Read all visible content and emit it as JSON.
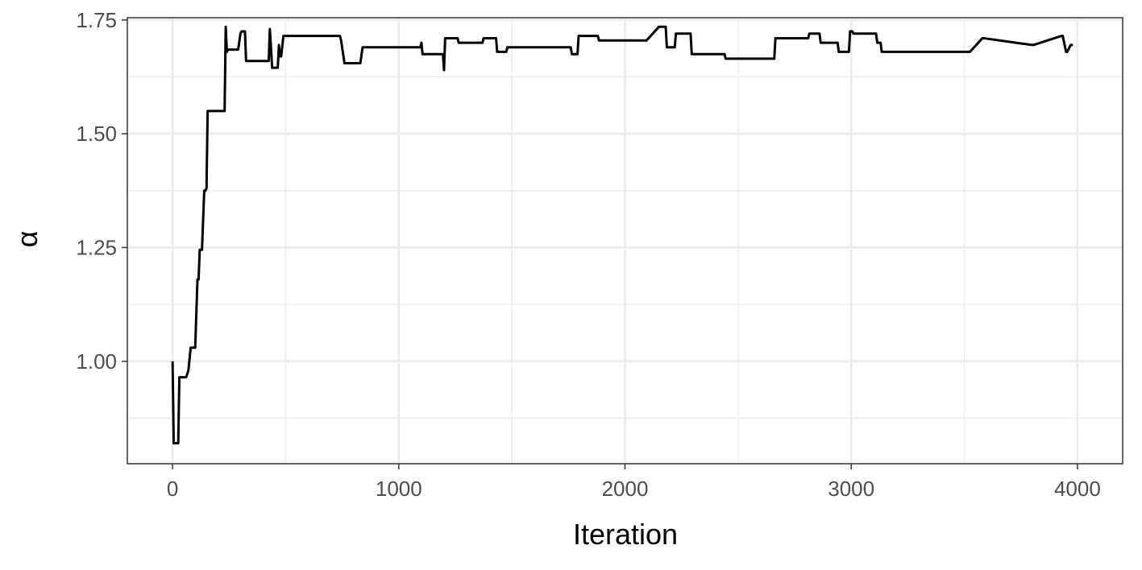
{
  "chart_data": {
    "type": "line",
    "xlabel": "Iteration",
    "ylabel": "α",
    "xlim": [
      -200,
      4200
    ],
    "ylim": [
      0.775,
      1.755
    ],
    "x_ticks": [
      0,
      1000,
      2000,
      3000,
      4000
    ],
    "x_tick_labels": [
      "0",
      "1000",
      "2000",
      "3000",
      "4000"
    ],
    "y_ticks": [
      1.0,
      1.25,
      1.5,
      1.75
    ],
    "y_tick_labels": [
      "1.00",
      "1.25",
      "1.50",
      "1.75"
    ],
    "grid": true,
    "colors": {
      "line": "#000000",
      "grid": "#ebebeb",
      "panel_border": "#333333",
      "background": "#ffffff"
    },
    "series": [
      {
        "x": [
          0,
          5,
          10,
          15,
          20,
          25,
          30,
          60,
          70,
          80,
          100,
          110,
          115,
          120,
          125,
          130,
          140,
          145,
          150,
          155,
          160,
          165,
          170,
          175,
          200,
          230,
          235,
          240,
          245,
          255,
          290,
          300,
          305,
          320,
          325,
          360,
          410,
          420,
          425,
          430,
          435,
          440,
          460,
          465,
          470,
          475,
          480,
          490,
          495,
          500,
          740,
          745,
          760,
          765,
          820,
          830,
          840,
          860,
          1090,
          1095,
          1100,
          1105,
          1190,
          1195,
          1200,
          1205,
          1260,
          1265,
          1370,
          1375,
          1430,
          1435,
          1475,
          1480,
          1760,
          1765,
          1790,
          1795,
          1830,
          1835,
          1880,
          1885,
          2090,
          2095,
          2150,
          2155,
          2180,
          2185,
          2220,
          2225,
          2290,
          2295,
          2420,
          2425,
          2440,
          2445,
          2660,
          2665,
          2810,
          2815,
          2860,
          2865,
          2940,
          2945,
          2990,
          2995,
          3005,
          3010,
          3110,
          3115,
          3130,
          3135,
          3520,
          3525,
          3580,
          3585,
          3800,
          3805,
          3930,
          3935,
          3950,
          3955,
          3970,
          3980
        ],
        "y": [
          1.0,
          0.82,
          0.82,
          0.82,
          0.82,
          0.82,
          0.965,
          0.965,
          0.98,
          1.03,
          1.03,
          1.18,
          1.18,
          1.245,
          1.245,
          1.245,
          1.375,
          1.375,
          1.38,
          1.55,
          1.55,
          1.55,
          1.55,
          1.55,
          1.55,
          1.55,
          1.735,
          1.68,
          1.685,
          1.685,
          1.685,
          1.72,
          1.725,
          1.725,
          1.66,
          1.66,
          1.66,
          1.66,
          1.66,
          1.73,
          1.69,
          1.645,
          1.645,
          1.645,
          1.695,
          1.67,
          1.67,
          1.715,
          1.715,
          1.715,
          1.715,
          1.705,
          1.655,
          1.655,
          1.655,
          1.655,
          1.69,
          1.69,
          1.69,
          1.69,
          1.7,
          1.675,
          1.675,
          1.675,
          1.64,
          1.71,
          1.71,
          1.7,
          1.7,
          1.71,
          1.71,
          1.68,
          1.68,
          1.69,
          1.69,
          1.675,
          1.675,
          1.715,
          1.715,
          1.715,
          1.715,
          1.705,
          1.705,
          1.705,
          1.735,
          1.735,
          1.735,
          1.69,
          1.69,
          1.72,
          1.72,
          1.675,
          1.675,
          1.675,
          1.675,
          1.665,
          1.665,
          1.71,
          1.71,
          1.72,
          1.72,
          1.7,
          1.7,
          1.68,
          1.68,
          1.725,
          1.725,
          1.72,
          1.72,
          1.7,
          1.7,
          1.68,
          1.68,
          1.68,
          1.71,
          1.71,
          1.695,
          1.695,
          1.715,
          1.715,
          1.68,
          1.68,
          1.695,
          1.695
        ]
      }
    ]
  }
}
